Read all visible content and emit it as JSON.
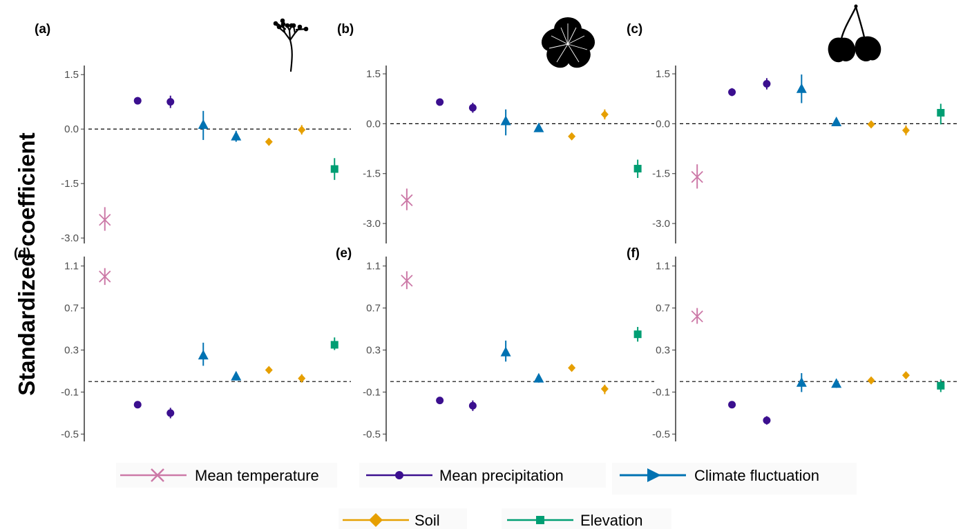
{
  "chart_data": {
    "type": "scatter",
    "ylabel": "Standardized coefficient",
    "categories": [
      "Mean temperature",
      "Mean precipitation",
      "Mean precipitation",
      "Climate fluctuation",
      "Climate fluctuation",
      "Soil",
      "Soil",
      "Elevation"
    ],
    "series_info": [
      {
        "name": "Mean temperature",
        "color": "#cc79a7",
        "marker": "x"
      },
      {
        "name": "Mean precipitation",
        "color": "#3b0f8f",
        "marker": "circle"
      },
      {
        "name": "Climate fluctuation",
        "color": "#0072b2",
        "marker": "triangle"
      },
      {
        "name": "Soil",
        "color": "#e69f00",
        "marker": "diamond"
      },
      {
        "name": "Elevation",
        "color": "#009e73",
        "marker": "square"
      }
    ],
    "legend": {
      "position": "bottom"
    },
    "grid": false,
    "reference_line": 0,
    "panels": [
      {
        "label": "(a)",
        "icon": "branching-stem-icon",
        "ylim": [
          -3.15,
          1.75
        ],
        "yticks": [
          "1.5",
          "0.0",
          "-1.5",
          "-3.0"
        ],
        "ytick_values": [
          1.5,
          0.0,
          -1.5,
          -3.0
        ],
        "values": [
          -2.5,
          0.78,
          0.75,
          0.12,
          -0.2,
          -0.35,
          -0.02,
          -1.1
        ],
        "ci": [
          [
            -2.8,
            -2.15
          ],
          [
            0.68,
            0.88
          ],
          [
            0.58,
            0.92
          ],
          [
            -0.3,
            0.5
          ],
          [
            -0.35,
            -0.05
          ],
          [
            -0.45,
            -0.25
          ],
          [
            -0.15,
            0.11
          ],
          [
            -1.4,
            -0.8
          ]
        ]
      },
      {
        "label": "(b)",
        "icon": "flower-icon",
        "ylim": [
          -3.6,
          1.75
        ],
        "yticks": [
          "1.5",
          "0.0",
          "-1.5",
          "-3.0"
        ],
        "ytick_values": [
          1.5,
          0.0,
          -1.5,
          -3.0
        ],
        "values": [
          -2.3,
          0.65,
          0.48,
          0.08,
          -0.13,
          -0.38,
          0.28,
          -1.35
        ],
        "ci": [
          [
            -2.6,
            -1.95
          ],
          [
            0.58,
            0.72
          ],
          [
            0.33,
            0.63
          ],
          [
            -0.35,
            0.43
          ],
          [
            -0.25,
            0.0
          ],
          [
            -0.47,
            -0.29
          ],
          [
            0.13,
            0.43
          ],
          [
            -1.63,
            -1.08
          ]
        ]
      },
      {
        "label": "(c)",
        "icon": "cherry-icon",
        "ylim": [
          -3.6,
          1.75
        ],
        "yticks": [
          "1.5",
          "0.0",
          "-1.5",
          "-3.0"
        ],
        "ytick_values": [
          1.5,
          0.0,
          -1.5,
          -3.0
        ],
        "values": [
          -1.6,
          0.95,
          1.2,
          1.05,
          0.05,
          -0.02,
          -0.2,
          0.33
        ],
        "ci": [
          [
            -1.95,
            -1.22
          ],
          [
            0.83,
            1.07
          ],
          [
            1.03,
            1.37
          ],
          [
            0.62,
            1.48
          ],
          [
            -0.07,
            0.17
          ],
          [
            -0.12,
            0.08
          ],
          [
            -0.35,
            -0.05
          ],
          [
            -0.02,
            0.6
          ]
        ]
      },
      {
        "label": "(d)",
        "icon": "",
        "ylim": [
          -0.57,
          1.19
        ],
        "yticks": [
          "1.1",
          "0.7",
          "0.3",
          "-0.1",
          "-0.5"
        ],
        "ytick_values": [
          1.1,
          0.7,
          0.3,
          -0.1,
          -0.5
        ],
        "values": [
          1.0,
          -0.22,
          -0.3,
          0.25,
          0.05,
          0.11,
          0.03,
          0.35
        ],
        "ci": [
          [
            0.92,
            1.08
          ],
          [
            -0.25,
            -0.19
          ],
          [
            -0.35,
            -0.25
          ],
          [
            0.15,
            0.37
          ],
          [
            0.01,
            0.09
          ],
          [
            0.09,
            0.13
          ],
          [
            -0.01,
            0.07
          ],
          [
            0.3,
            0.42
          ]
        ]
      },
      {
        "label": "(e)",
        "icon": "",
        "ylim": [
          -0.57,
          1.19
        ],
        "yticks": [
          "1.1",
          "0.7",
          "0.3",
          "-0.1",
          "-0.5"
        ],
        "ytick_values": [
          1.1,
          0.7,
          0.3,
          -0.1,
          -0.5
        ],
        "values": [
          0.96,
          -0.18,
          -0.23,
          0.28,
          0.03,
          0.13,
          -0.07,
          0.45
        ],
        "ci": [
          [
            0.88,
            1.05
          ],
          [
            -0.21,
            -0.15
          ],
          [
            -0.28,
            -0.18
          ],
          [
            0.19,
            0.39
          ],
          [
            -0.01,
            0.07
          ],
          [
            0.11,
            0.15
          ],
          [
            -0.12,
            -0.03
          ],
          [
            0.38,
            0.52
          ]
        ]
      },
      {
        "label": "(f)",
        "icon": "",
        "ylim": [
          -0.57,
          1.19
        ],
        "yticks": [
          "1.1",
          "0.7",
          "0.3",
          "-0.1",
          "-0.5"
        ],
        "ytick_values": [
          1.1,
          0.7,
          0.3,
          -0.1,
          -0.5
        ],
        "values": [
          0.62,
          -0.22,
          -0.37,
          -0.01,
          -0.02,
          0.01,
          0.06,
          -0.04
        ],
        "ci": [
          [
            0.55,
            0.7
          ],
          [
            -0.25,
            -0.19
          ],
          [
            -0.41,
            -0.33
          ],
          [
            -0.1,
            0.08
          ],
          [
            -0.06,
            0.02
          ],
          [
            -0.01,
            0.03
          ],
          [
            0.03,
            0.09
          ],
          [
            -0.1,
            0.02
          ]
        ]
      }
    ]
  }
}
